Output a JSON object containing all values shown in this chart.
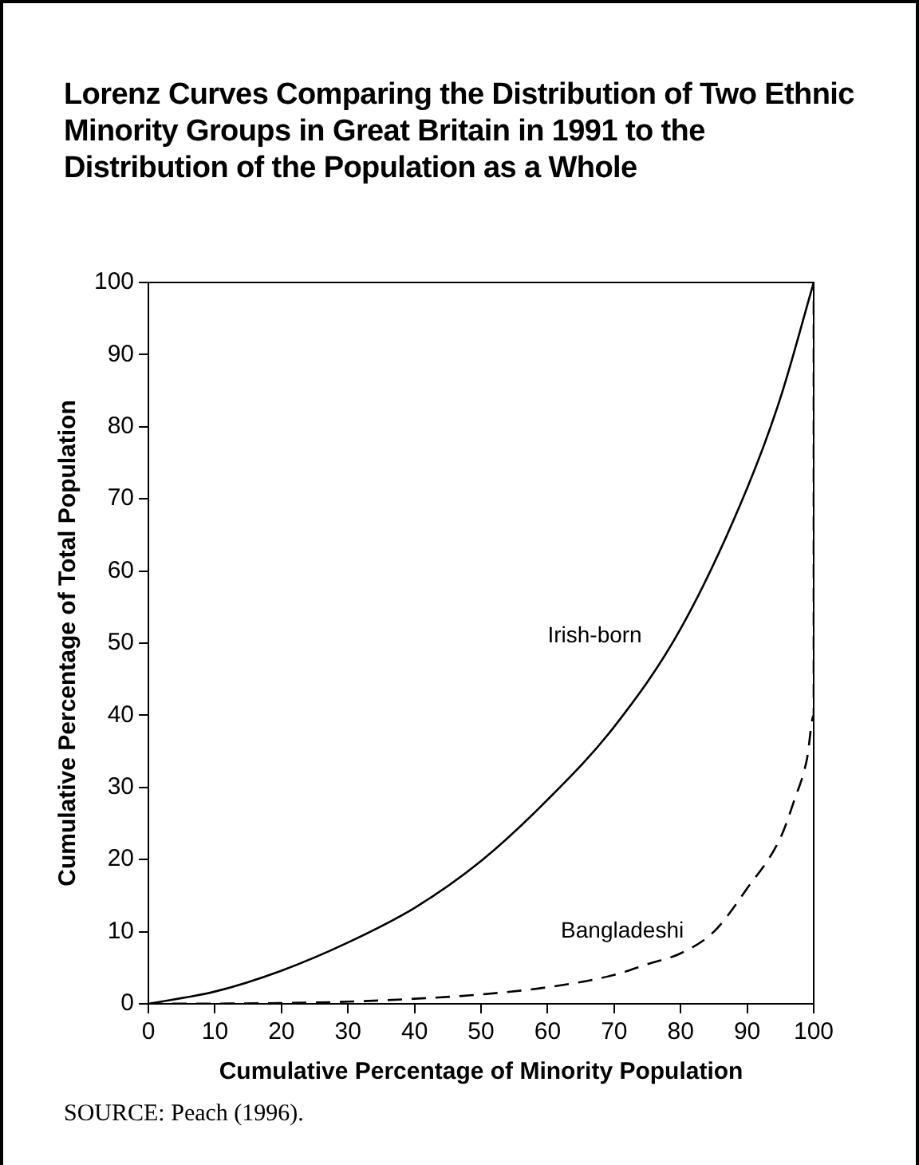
{
  "chart_data": {
    "type": "line",
    "title": "Lorenz Curves Comparing the Distribution of Two Ethnic Minority Groups in Great Britain in 1991 to the Distribution of the Population as a Whole",
    "xlabel": "Cumulative Percentage of Minority Population",
    "ylabel": "Cumulative Percentage of Total Population",
    "series": [
      {
        "name": "Irish-born",
        "color": "#000000",
        "line_style": "solid",
        "x": [
          0,
          10,
          20,
          30,
          40,
          50,
          60,
          70,
          80,
          90,
          95,
          100
        ],
        "values": [
          0,
          1.7,
          4.6,
          8.5,
          13.3,
          19.8,
          28.3,
          38.4,
          52,
          71.5,
          84,
          100
        ]
      },
      {
        "name": "Bangladeshi",
        "color": "#000000",
        "line_style": "dashed",
        "x": [
          0,
          20,
          30,
          40,
          50,
          60,
          70,
          75,
          80,
          85,
          90,
          95,
          97,
          99,
          100,
          100
        ],
        "values": [
          0,
          0.1,
          0.3,
          0.7,
          1.3,
          2.3,
          4,
          5.5,
          7,
          10,
          16,
          23,
          28,
          34,
          40,
          100
        ]
      }
    ],
    "xlim": [
      0,
      100
    ],
    "xticks": [
      0,
      10,
      20,
      30,
      40,
      50,
      60,
      70,
      80,
      90,
      100
    ],
    "ylim": [
      0,
      100
    ],
    "yticks": [
      0,
      10,
      20,
      30,
      40,
      50,
      60,
      70,
      80,
      90,
      100
    ],
    "grid": false,
    "legend": false,
    "marker": "none",
    "annotations": [
      "SOURCE: Peach (1996)."
    ]
  }
}
